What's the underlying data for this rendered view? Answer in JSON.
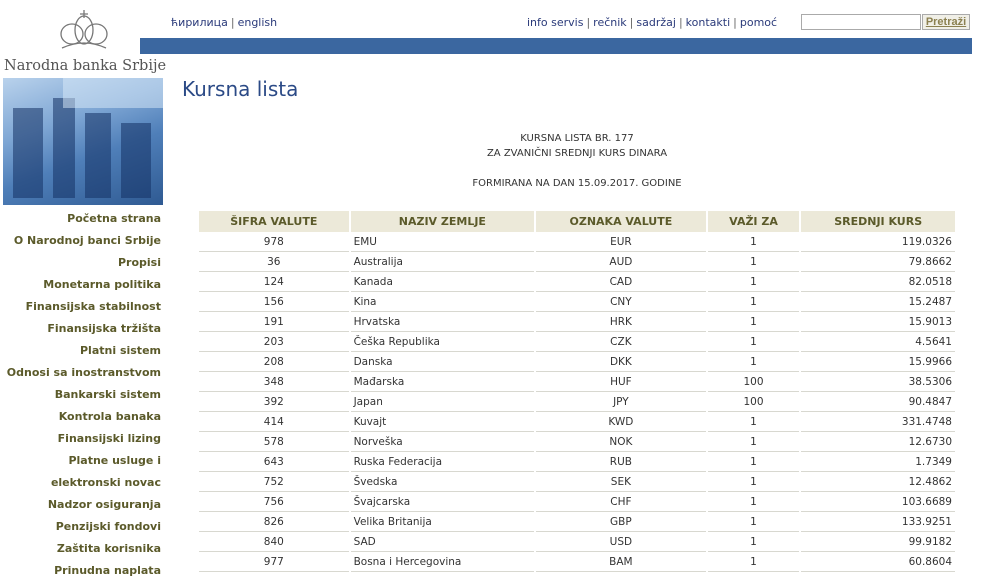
{
  "header": {
    "logo_text": "Narodna banka Srbije",
    "lang": [
      "ћирилица",
      "english"
    ],
    "topnav": [
      "info servis",
      "rečnik",
      "sadržaj",
      "kontakti",
      "pomoć"
    ],
    "search": {
      "value": "",
      "button": "Pretraži"
    },
    "accent": "#3b67a0"
  },
  "menu": [
    "Početna strana",
    "O Narodnoj banci Srbije",
    "Propisi",
    "Monetarna politika",
    "Finansijska stabilnost",
    "Finansijska tržišta",
    "Platni sistem",
    "Odnosi sa inostranstvom",
    "Bankarski sistem",
    "Kontrola banaka",
    "Finansijski lizing",
    "Platne usluge i",
    "elektronski novac",
    "Nadzor osiguranja",
    "Penzijski fondovi",
    "Zaštita korisnika",
    "Prinudna naplata"
  ],
  "main": {
    "title": "Kursna lista",
    "line1": "KURSNA LISTA BR. 177",
    "line2": "ZA ZVANIČNI SREDNJI KURS DINARA",
    "line3": "FORMIRANA NA DAN 15.09.2017. GODINE"
  },
  "table": {
    "headers": [
      "ŠIFRA VALUTE",
      "NAZIV ZEMLJE",
      "OZNAKA VALUTE",
      "VAŽI ZA",
      "SREDNJI KURS"
    ],
    "rows": [
      [
        "978",
        "EMU",
        "EUR",
        "1",
        "119.0326"
      ],
      [
        "36",
        "Australija",
        "AUD",
        "1",
        "79.8662"
      ],
      [
        "124",
        "Kanada",
        "CAD",
        "1",
        "82.0518"
      ],
      [
        "156",
        "Kina",
        "CNY",
        "1",
        "15.2487"
      ],
      [
        "191",
        "Hrvatska",
        "HRK",
        "1",
        "15.9013"
      ],
      [
        "203",
        "Češka Republika",
        "CZK",
        "1",
        "4.5641"
      ],
      [
        "208",
        "Danska",
        "DKK",
        "1",
        "15.9966"
      ],
      [
        "348",
        "Mađarska",
        "HUF",
        "100",
        "38.5306"
      ],
      [
        "392",
        "Japan",
        "JPY",
        "100",
        "90.4847"
      ],
      [
        "414",
        "Kuvajt",
        "KWD",
        "1",
        "331.4748"
      ],
      [
        "578",
        "Norveška",
        "NOK",
        "1",
        "12.6730"
      ],
      [
        "643",
        "Ruska Federacija",
        "RUB",
        "1",
        "1.7349"
      ],
      [
        "752",
        "Švedska",
        "SEK",
        "1",
        "12.4862"
      ],
      [
        "756",
        "Švajcarska",
        "CHF",
        "1",
        "103.6689"
      ],
      [
        "826",
        "Velika Britanija",
        "GBP",
        "1",
        "133.9251"
      ],
      [
        "840",
        "SAD",
        "USD",
        "1",
        "99.9182"
      ],
      [
        "977",
        "Bosna i Hercegovina",
        "BAM",
        "1",
        "60.8604"
      ]
    ]
  }
}
